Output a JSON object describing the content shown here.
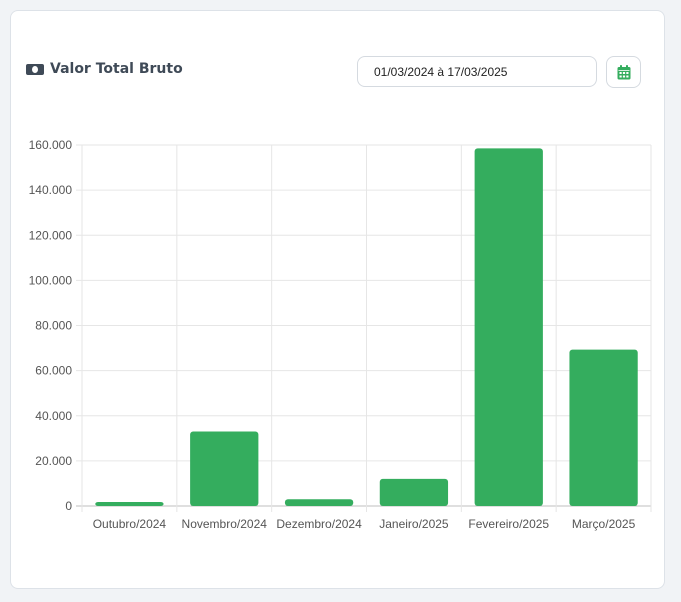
{
  "header": {
    "title": "Valor Total Bruto",
    "title_icon": "money-bill-icon",
    "date_range": "01/03/2024 à 17/03/2025",
    "calendar_icon": "calendar-icon"
  },
  "colors": {
    "bar": "#34ad5e",
    "accent": "#34ad5e"
  },
  "chart_data": {
    "type": "bar",
    "categories": [
      "Outubro/2024",
      "Novembro/2024",
      "Dezembro/2024",
      "Janeiro/2025",
      "Fevereiro/2025",
      "Março/2025"
    ],
    "values": [
      1800,
      33000,
      3000,
      12000,
      158500,
      69300
    ],
    "ylim": [
      0,
      160000
    ],
    "yticks": [
      0,
      20000,
      40000,
      60000,
      80000,
      100000,
      120000,
      140000,
      160000
    ],
    "ytick_labels": [
      "0",
      "20.000",
      "40.000",
      "60.000",
      "80.000",
      "100.000",
      "120.000",
      "140.000",
      "160.000"
    ],
    "grid": true,
    "legend": "none"
  }
}
